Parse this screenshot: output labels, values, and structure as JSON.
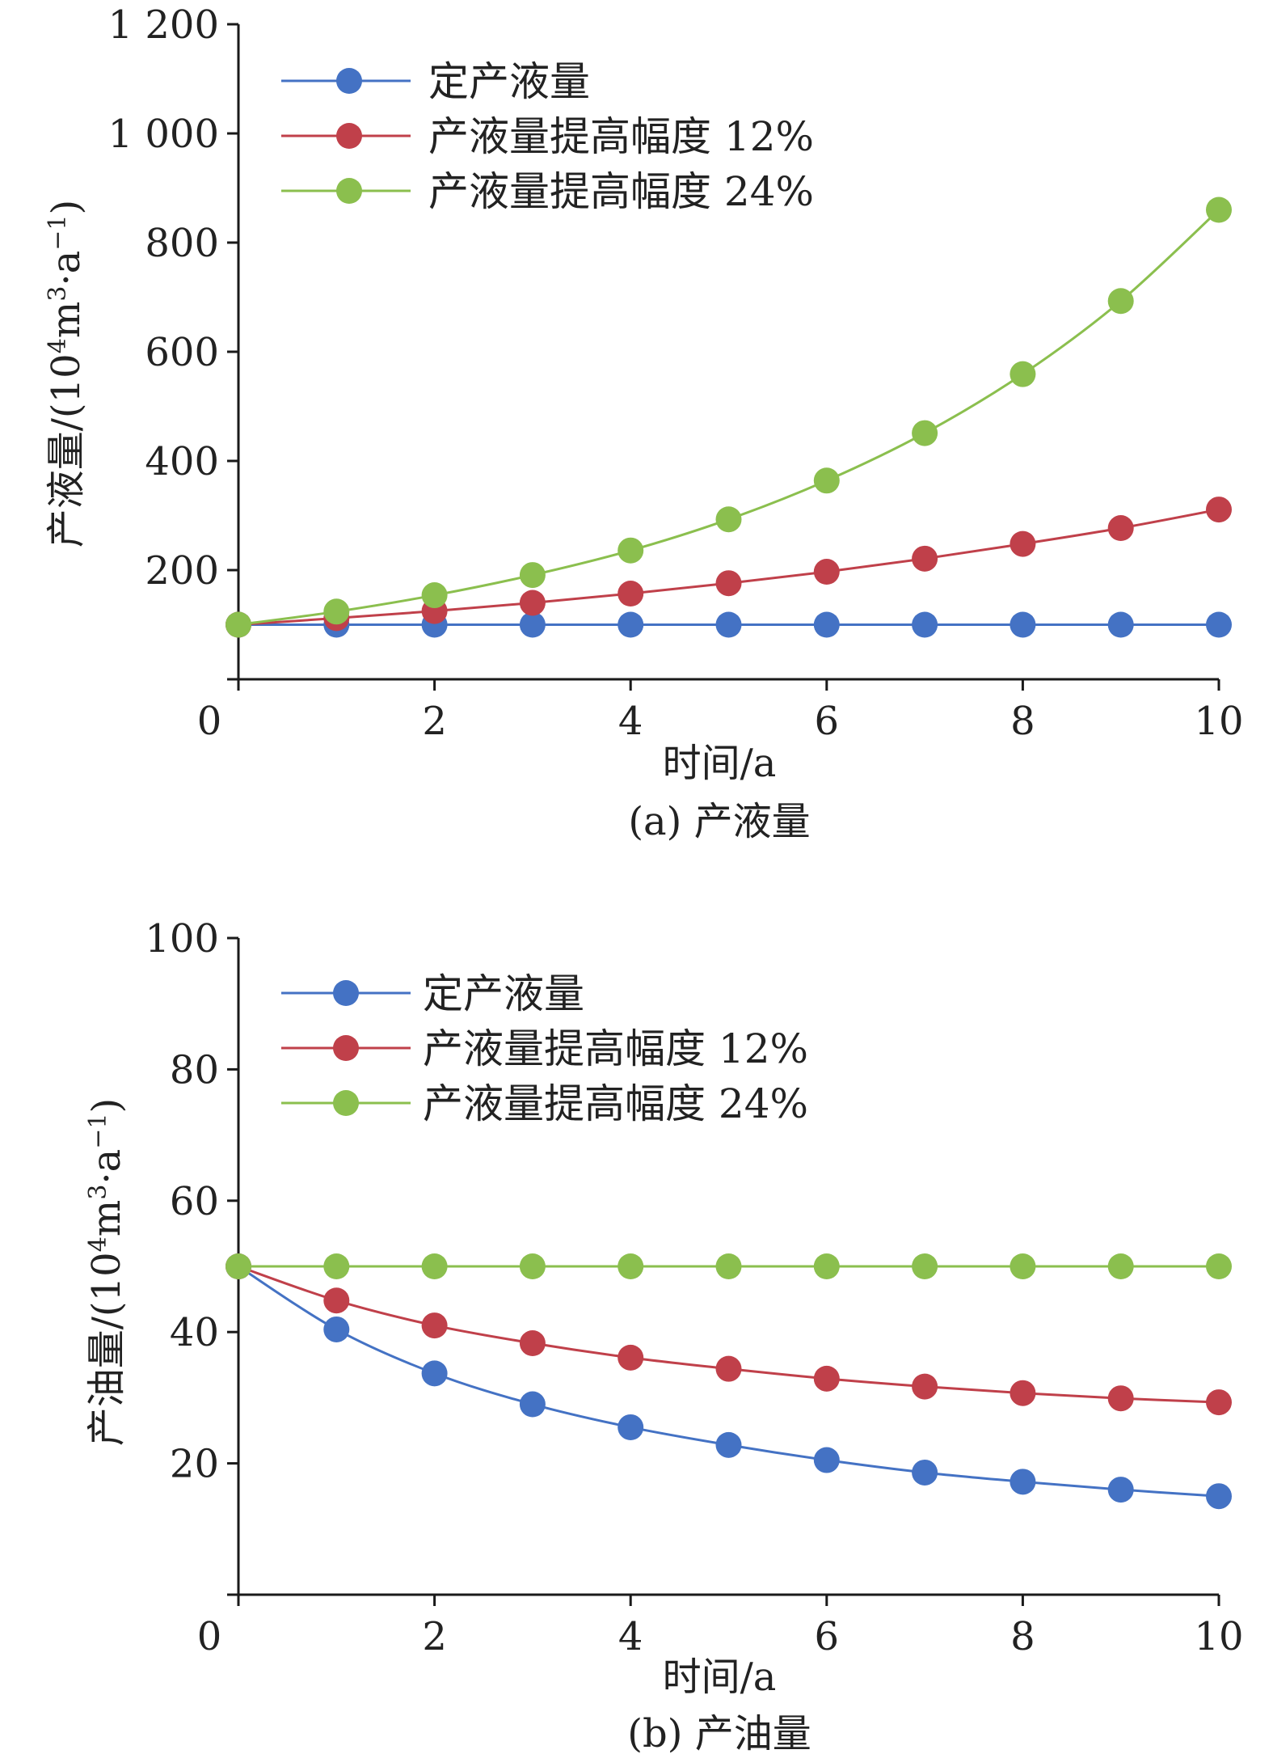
{
  "chart_data": [
    {
      "id": "a",
      "type": "line",
      "caption": "(a) 产液量",
      "xlabel": "时间/a",
      "ylabel_main": "产液量/(10",
      "ylabel_sup1": "4",
      "ylabel_mid": "m",
      "ylabel_sup2": "3",
      "ylabel_end": "·a",
      "ylabel_sup3": "−1",
      "ylabel_close": ")",
      "xlim": [
        0,
        10
      ],
      "ylim": [
        0,
        1200
      ],
      "xticks": [
        0,
        2,
        4,
        6,
        8,
        10
      ],
      "xtick_labels": [
        "0",
        "2",
        "4",
        "6",
        "8",
        "10"
      ],
      "yticks": [
        0,
        200,
        400,
        600,
        800,
        1000,
        1200
      ],
      "ytick_labels": [
        "",
        "200",
        "400",
        "600",
        "800",
        "1 000",
        "1 200"
      ],
      "legend_position": "top-left",
      "x": [
        0,
        1,
        2,
        3,
        4,
        5,
        6,
        7,
        8,
        9,
        10
      ],
      "series": [
        {
          "name": "定产液量",
          "color": "#4472c4",
          "values": [
            100,
            100,
            100,
            100,
            100,
            100,
            100,
            100,
            100,
            100,
            100
          ]
        },
        {
          "name": "产液量提高幅度 12%",
          "color": "#c0404a",
          "values": [
            100,
            112,
            125,
            140,
            157,
            176,
            197,
            221,
            248,
            277,
            311
          ]
        },
        {
          "name": "产液量提高幅度 24%",
          "color": "#8bbf4e",
          "values": [
            100,
            124,
            154,
            191,
            236,
            293,
            364,
            451,
            559,
            693,
            860
          ]
        }
      ]
    },
    {
      "id": "b",
      "type": "line",
      "caption": "(b) 产油量",
      "xlabel": "时间/a",
      "ylabel_main": "产油量/(10",
      "ylabel_sup1": "4",
      "ylabel_mid": "m",
      "ylabel_sup2": "3",
      "ylabel_end": "·a",
      "ylabel_sup3": "−1",
      "ylabel_close": ")",
      "xlim": [
        0,
        10
      ],
      "ylim": [
        0,
        100
      ],
      "xticks": [
        0,
        2,
        4,
        6,
        8,
        10
      ],
      "xtick_labels": [
        "0",
        "2",
        "4",
        "6",
        "8",
        "10"
      ],
      "yticks": [
        0,
        20,
        40,
        60,
        80,
        100
      ],
      "ytick_labels": [
        "",
        "20",
        "40",
        "60",
        "80",
        "100"
      ],
      "legend_position": "top-left",
      "x": [
        0,
        1,
        2,
        3,
        4,
        5,
        6,
        7,
        8,
        9,
        10
      ],
      "series": [
        {
          "name": "定产液量",
          "color": "#4472c4",
          "values": [
            50,
            40.4,
            33.7,
            29.0,
            25.5,
            22.8,
            20.5,
            18.6,
            17.2,
            16.0,
            15.0
          ]
        },
        {
          "name": "产液量提高幅度 12%",
          "color": "#c0404a",
          "values": [
            50,
            44.8,
            41.0,
            38.3,
            36.1,
            34.4,
            32.9,
            31.7,
            30.7,
            29.9,
            29.3
          ]
        },
        {
          "name": "产液量提高幅度 24%",
          "color": "#8bbf4e",
          "values": [
            50,
            50,
            50,
            50,
            50,
            50,
            50,
            50,
            50,
            50,
            50
          ]
        }
      ]
    }
  ]
}
